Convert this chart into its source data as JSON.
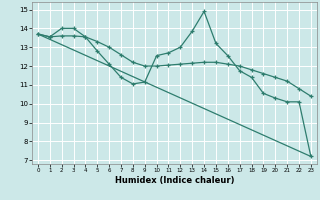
{
  "xlabel": "Humidex (Indice chaleur)",
  "bg_color": "#cce8e8",
  "grid_color": "#ffffff",
  "line_color": "#2e7d6e",
  "xlim": [
    -0.5,
    23.5
  ],
  "ylim": [
    6.8,
    15.4
  ],
  "yticks": [
    7,
    8,
    9,
    10,
    11,
    12,
    13,
    14,
    15
  ],
  "xticks": [
    0,
    1,
    2,
    3,
    4,
    5,
    6,
    7,
    8,
    9,
    10,
    11,
    12,
    13,
    14,
    15,
    16,
    17,
    18,
    19,
    20,
    21,
    22,
    23
  ],
  "line1_x": [
    0,
    1,
    2,
    3,
    4,
    5,
    6,
    7,
    8,
    9,
    10,
    11,
    12,
    13,
    14,
    15,
    16,
    17,
    18,
    19,
    20,
    21,
    22,
    23
  ],
  "line1_y": [
    13.7,
    13.55,
    14.0,
    14.0,
    13.55,
    12.8,
    12.1,
    11.4,
    11.05,
    11.15,
    12.55,
    12.7,
    13.0,
    13.85,
    14.9,
    13.2,
    12.55,
    11.75,
    11.4,
    10.55,
    10.3,
    10.1,
    10.1,
    7.2
  ],
  "line2_x": [
    0,
    1,
    2,
    3,
    4,
    5,
    6,
    7,
    8,
    9,
    10,
    11,
    12,
    13,
    14,
    15,
    16,
    17,
    18,
    19,
    20,
    21,
    22,
    23
  ],
  "line2_y": [
    13.7,
    13.55,
    13.6,
    13.6,
    13.55,
    13.3,
    13.0,
    12.6,
    12.2,
    12.0,
    12.0,
    12.05,
    12.1,
    12.15,
    12.2,
    12.2,
    12.1,
    12.0,
    11.8,
    11.6,
    11.4,
    11.2,
    10.8,
    10.4
  ],
  "line3_x": [
    0,
    23
  ],
  "line3_y": [
    13.7,
    7.2
  ]
}
